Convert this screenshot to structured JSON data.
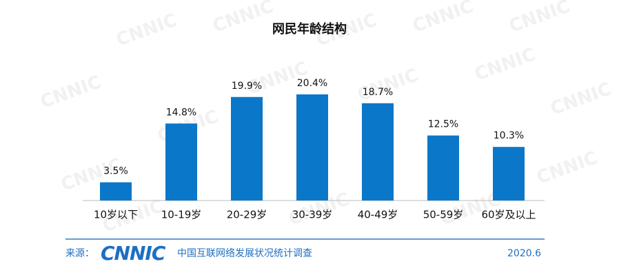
{
  "chart_data": {
    "type": "bar",
    "title": "网民年龄结构",
    "categories": [
      "10岁以下",
      "10-19岁",
      "20-29岁",
      "30-39岁",
      "40-49岁",
      "50-59岁",
      "60岁及以上"
    ],
    "values": [
      3.5,
      14.8,
      19.9,
      20.4,
      18.7,
      12.5,
      10.3
    ],
    "value_labels": [
      "3.5%",
      "14.8%",
      "19.9%",
      "20.4%",
      "18.7%",
      "12.5%",
      "10.3%"
    ],
    "color": "#0b77c9",
    "watermark": "CNNIC"
  },
  "footer": {
    "source_label": "来源：",
    "logo": "CNNIC",
    "survey": "中国互联网络发展状况统计调查",
    "date": "2020.6"
  }
}
